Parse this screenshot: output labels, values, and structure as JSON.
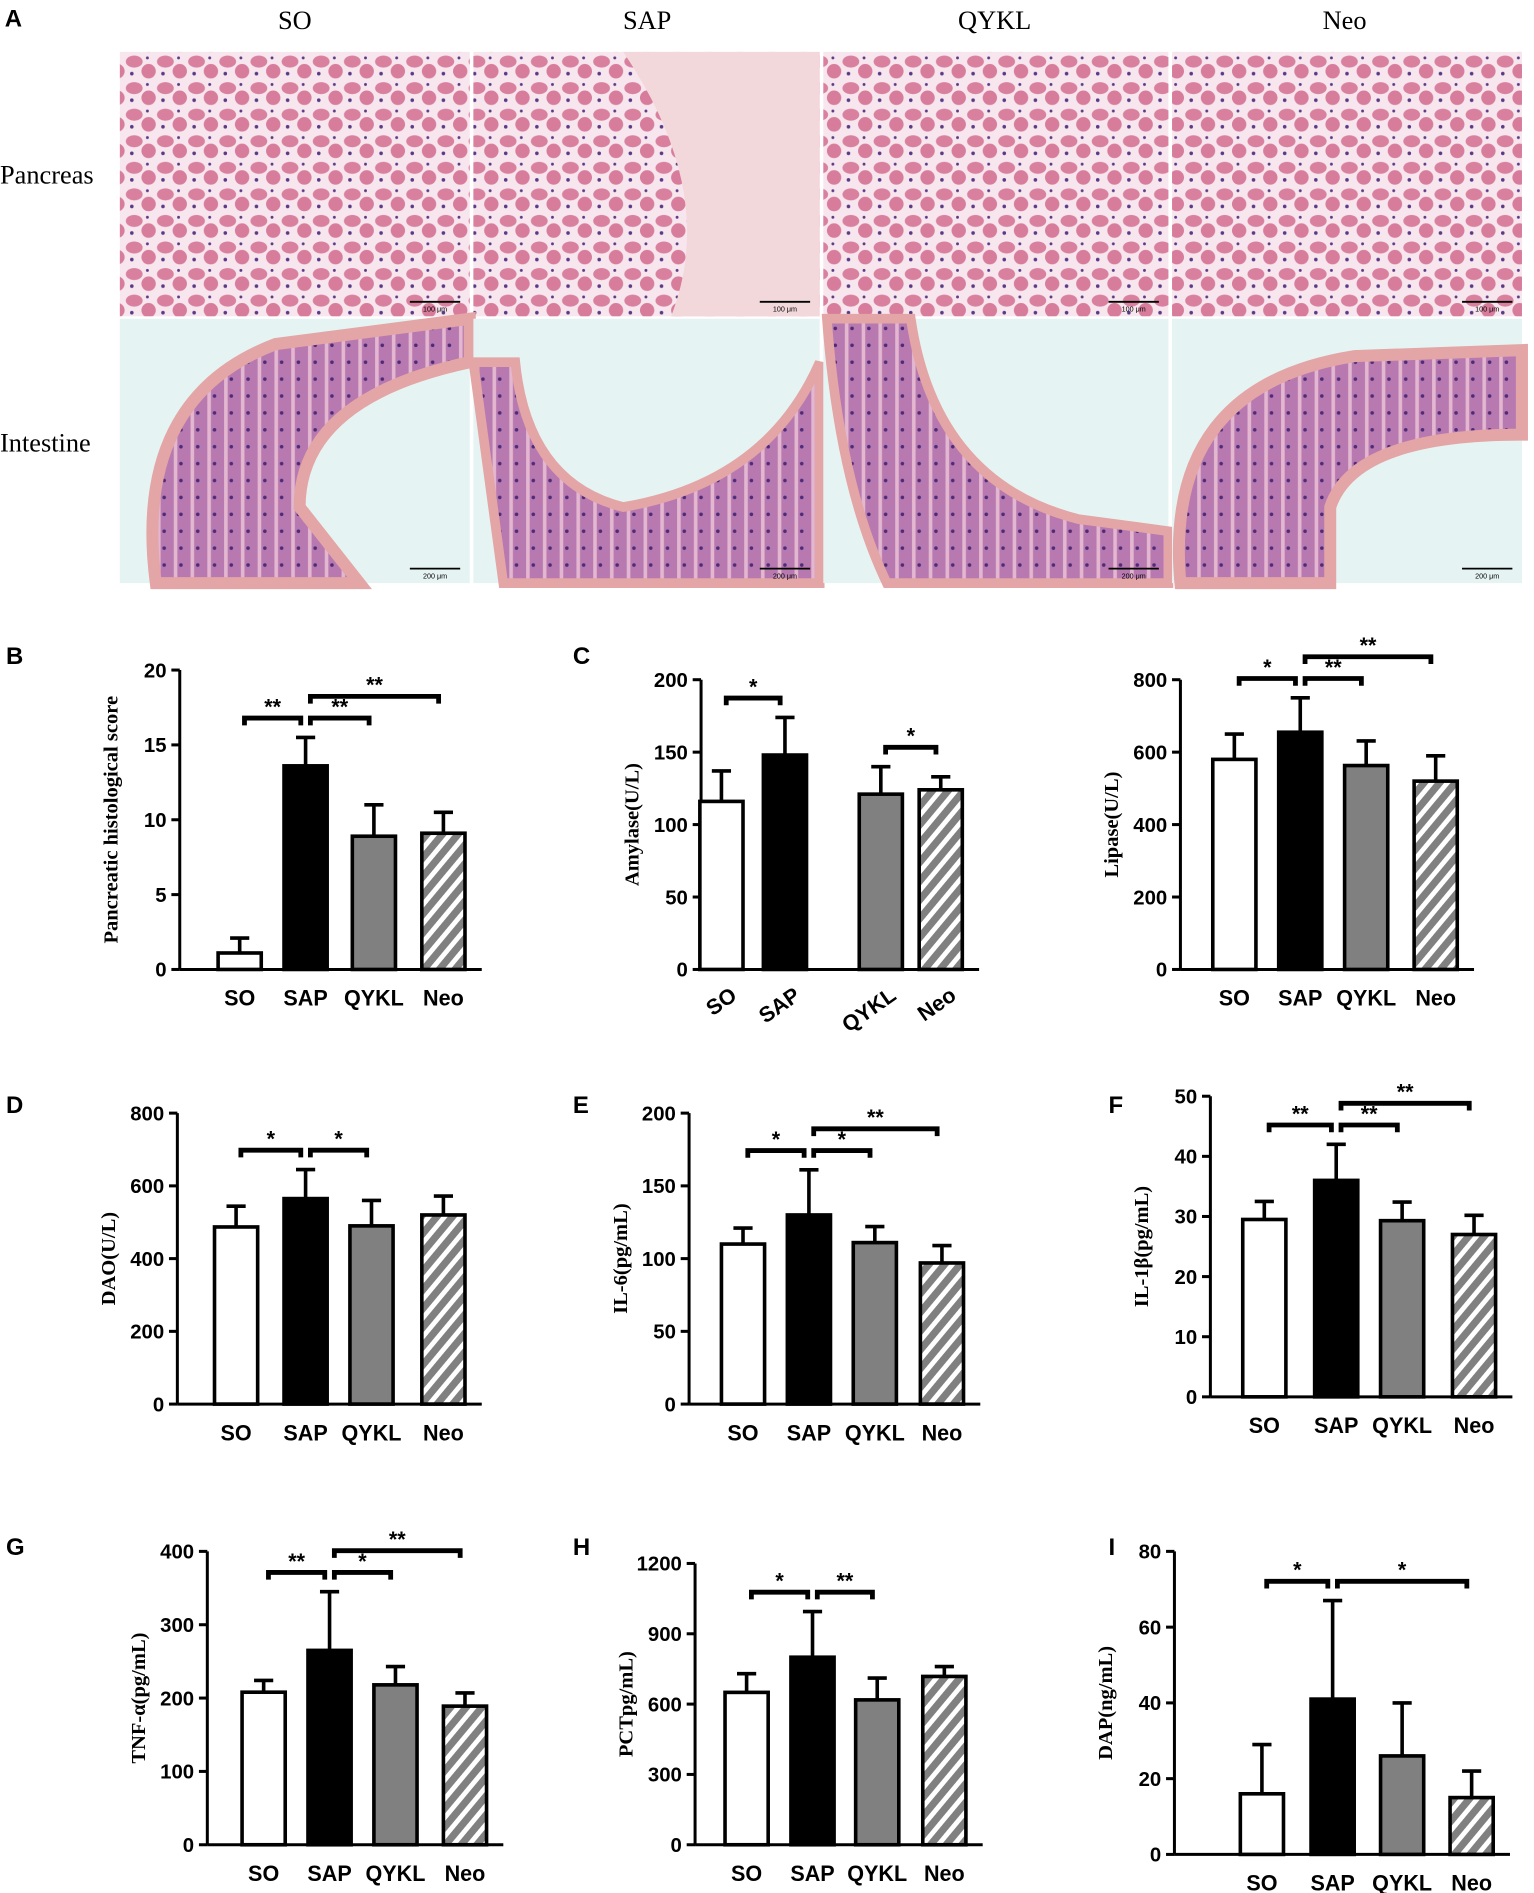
{
  "panel_A": {
    "panel": "A",
    "columns": [
      "SO",
      "SAP",
      "QYKL",
      "Neo"
    ],
    "rows": [
      "Pancreas",
      "Intestine"
    ],
    "scale_labels": [
      [
        "100 μm",
        "100 μm",
        "100 μm",
        "100 μm"
      ],
      [
        "200 μm",
        "200 μm",
        "200 μm",
        "200 μm"
      ]
    ]
  },
  "chart_data": [
    {
      "type": "bar",
      "panel": "B",
      "ylabel": "Pancreatic histological score",
      "categories": [
        "SO",
        "SAP",
        "QYKL",
        "Neo"
      ],
      "values": [
        1.1,
        13.6,
        8.9,
        9.1
      ],
      "errors": [
        1.0,
        1.9,
        2.1,
        1.4
      ],
      "colors": [
        "#ffffff",
        "#000000",
        "#808080",
        "#808080"
      ],
      "hatched": [
        false,
        false,
        false,
        true
      ],
      "ylim": [
        0,
        20
      ],
      "yticks": [
        0,
        5,
        10,
        15,
        20
      ],
      "rotate_labels": false,
      "significance": [
        {
          "from": 0,
          "to": 1,
          "label": "**"
        },
        {
          "from": 1,
          "to": 2,
          "label": "**"
        },
        {
          "from": 1,
          "to": 3,
          "label": "**"
        }
      ]
    },
    {
      "type": "bar",
      "panel": "C",
      "ylabel": "Amylase(U/L)",
      "categories": [
        "SO",
        "SAP",
        "QYKL",
        "Neo"
      ],
      "values": [
        116,
        148,
        121,
        124
      ],
      "errors": [
        21,
        26,
        19,
        9
      ],
      "colors": [
        "#ffffff",
        "#000000",
        "#808080",
        "#808080"
      ],
      "hatched": [
        false,
        false,
        false,
        true
      ],
      "ylim": [
        0,
        200
      ],
      "yticks": [
        0,
        50,
        100,
        150,
        200
      ],
      "rotate_labels": true,
      "significance": [
        {
          "from": 0,
          "to": 1,
          "label": "*"
        },
        {
          "from": 2,
          "to": 3,
          "label": "*"
        }
      ]
    },
    {
      "type": "bar",
      "ylabel": "Lipase(U/L)",
      "categories": [
        "SO",
        "SAP",
        "QYKL",
        "Neo"
      ],
      "values": [
        580,
        655,
        563,
        520
      ],
      "errors": [
        70,
        95,
        68,
        70
      ],
      "colors": [
        "#ffffff",
        "#000000",
        "#808080",
        "#808080"
      ],
      "hatched": [
        false,
        false,
        false,
        true
      ],
      "ylim": [
        0,
        800
      ],
      "yticks": [
        0,
        200,
        400,
        600,
        800
      ],
      "rotate_labels": false,
      "significance": [
        {
          "from": 0,
          "to": 1,
          "label": "*"
        },
        {
          "from": 1,
          "to": 2,
          "label": "**"
        },
        {
          "from": 1,
          "to": 3,
          "label": "**"
        }
      ]
    },
    {
      "type": "bar",
      "panel": "D",
      "ylabel": "DAO(U/L)",
      "categories": [
        "SO",
        "SAP",
        "QYKL",
        "Neo"
      ],
      "values": [
        487,
        565,
        490,
        520
      ],
      "errors": [
        57,
        80,
        70,
        52
      ],
      "colors": [
        "#ffffff",
        "#000000",
        "#808080",
        "#808080"
      ],
      "hatched": [
        false,
        false,
        false,
        true
      ],
      "ylim": [
        0,
        800
      ],
      "yticks": [
        0,
        200,
        400,
        600,
        800
      ],
      "rotate_labels": false,
      "significance": [
        {
          "from": 0,
          "to": 1,
          "label": "*"
        },
        {
          "from": 1,
          "to": 2,
          "label": "*"
        }
      ]
    },
    {
      "type": "bar",
      "panel": "E",
      "ylabel": "IL-6(pg/mL)",
      "categories": [
        "SO",
        "SAP",
        "QYKL",
        "Neo"
      ],
      "values": [
        110,
        130,
        111,
        97
      ],
      "errors": [
        11,
        31,
        11,
        12
      ],
      "colors": [
        "#ffffff",
        "#000000",
        "#808080",
        "#808080"
      ],
      "hatched": [
        false,
        false,
        false,
        true
      ],
      "ylim": [
        0,
        200
      ],
      "yticks": [
        0,
        50,
        100,
        150,
        200
      ],
      "rotate_labels": false,
      "significance": [
        {
          "from": 0,
          "to": 1,
          "label": "*"
        },
        {
          "from": 1,
          "to": 2,
          "label": "*"
        },
        {
          "from": 1,
          "to": 3,
          "label": "**"
        }
      ]
    },
    {
      "type": "bar",
      "panel": "F",
      "ylabel": "IL-1β(pg/mL)",
      "categories": [
        "SO",
        "SAP",
        "QYKL",
        "Neo"
      ],
      "values": [
        29.5,
        36,
        29.3,
        27
      ],
      "errors": [
        3,
        6,
        3.1,
        3.2
      ],
      "colors": [
        "#ffffff",
        "#000000",
        "#808080",
        "#808080"
      ],
      "hatched": [
        false,
        false,
        false,
        true
      ],
      "ylim": [
        0,
        50
      ],
      "yticks": [
        0,
        10,
        20,
        30,
        40,
        50
      ],
      "rotate_labels": false,
      "significance": [
        {
          "from": 0,
          "to": 1,
          "label": "**"
        },
        {
          "from": 1,
          "to": 2,
          "label": "**"
        },
        {
          "from": 1,
          "to": 3,
          "label": "**"
        }
      ]
    },
    {
      "type": "bar",
      "panel": "G",
      "ylabel": "TNF-α(pg/mL)",
      "categories": [
        "SO",
        "SAP",
        "QYKL",
        "Neo"
      ],
      "values": [
        208,
        265,
        218,
        189
      ],
      "errors": [
        16,
        80,
        25,
        18
      ],
      "colors": [
        "#ffffff",
        "#000000",
        "#808080",
        "#808080"
      ],
      "hatched": [
        false,
        false,
        false,
        true
      ],
      "ylim": [
        0,
        400
      ],
      "yticks": [
        0,
        100,
        200,
        300,
        400
      ],
      "rotate_labels": false,
      "significance": [
        {
          "from": 0,
          "to": 1,
          "label": "**"
        },
        {
          "from": 1,
          "to": 2,
          "label": "*"
        },
        {
          "from": 1,
          "to": 3,
          "label": "**"
        }
      ]
    },
    {
      "type": "bar",
      "panel": "H",
      "ylabel": "PCTpg/mL)",
      "categories": [
        "SO",
        "SAP",
        "QYKL",
        "Neo"
      ],
      "values": [
        650,
        800,
        618,
        718
      ],
      "errors": [
        80,
        195,
        93,
        42
      ],
      "colors": [
        "#ffffff",
        "#000000",
        "#808080",
        "#808080"
      ],
      "hatched": [
        false,
        false,
        false,
        true
      ],
      "ylim": [
        0,
        1200
      ],
      "yticks": [
        0,
        300,
        600,
        900,
        1200
      ],
      "rotate_labels": false,
      "significance": [
        {
          "from": 0,
          "to": 1,
          "label": "*"
        },
        {
          "from": 1,
          "to": 2,
          "label": "**"
        }
      ]
    },
    {
      "type": "bar",
      "panel": "I",
      "ylabel": "DAP(ng/mL)",
      "categories": [
        "SO",
        "SAP",
        "QYKL",
        "Neo"
      ],
      "values": [
        16,
        41,
        26,
        15
      ],
      "errors": [
        13,
        26,
        14,
        7
      ],
      "colors": [
        "#ffffff",
        "#000000",
        "#808080",
        "#808080"
      ],
      "hatched": [
        false,
        false,
        false,
        true
      ],
      "ylim": [
        0,
        80
      ],
      "yticks": [
        0,
        20,
        40,
        60,
        80
      ],
      "rotate_labels": false,
      "significance": [
        {
          "from": 0,
          "to": 1,
          "label": "*"
        },
        {
          "from": 1,
          "to": 3,
          "label": "*"
        }
      ]
    }
  ]
}
